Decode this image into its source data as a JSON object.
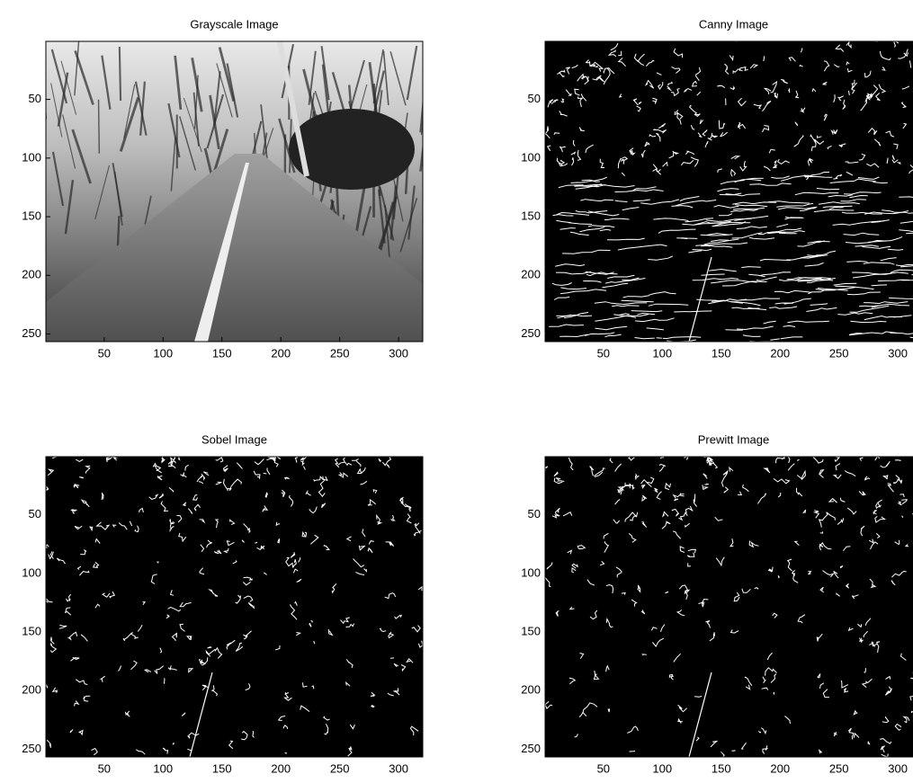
{
  "chart_data": [
    {
      "type": "image",
      "title": "Grayscale Image",
      "colormap": "gray",
      "xlim": [
        0.5,
        320.5
      ],
      "ylim": [
        0.5,
        256.5
      ],
      "y_reversed": true,
      "xticks": [
        50,
        100,
        150,
        200,
        250,
        300
      ],
      "yticks": [
        50,
        100,
        150,
        200,
        250
      ]
    },
    {
      "type": "image",
      "title": "Canny Image",
      "colormap": "edges",
      "xlim": [
        0.5,
        320.5
      ],
      "ylim": [
        0.5,
        256.5
      ],
      "y_reversed": true,
      "xticks": [
        50,
        100,
        150,
        200,
        250,
        300
      ],
      "yticks": [
        50,
        100,
        150,
        200,
        250
      ]
    },
    {
      "type": "image",
      "title": "Sobel Image",
      "colormap": "edges",
      "xlim": [
        0.5,
        320.5
      ],
      "ylim": [
        0.5,
        256.5
      ],
      "y_reversed": true,
      "xticks": [
        50,
        100,
        150,
        200,
        250,
        300
      ],
      "yticks": [
        50,
        100,
        150,
        200,
        250
      ]
    },
    {
      "type": "image",
      "title": "Prewitt Image",
      "colormap": "edges",
      "xlim": [
        0.5,
        320.5
      ],
      "ylim": [
        0.5,
        256.5
      ],
      "y_reversed": true,
      "xticks": [
        50,
        100,
        150,
        200,
        250,
        300
      ],
      "yticks": [
        50,
        100,
        150,
        200,
        250
      ]
    }
  ]
}
